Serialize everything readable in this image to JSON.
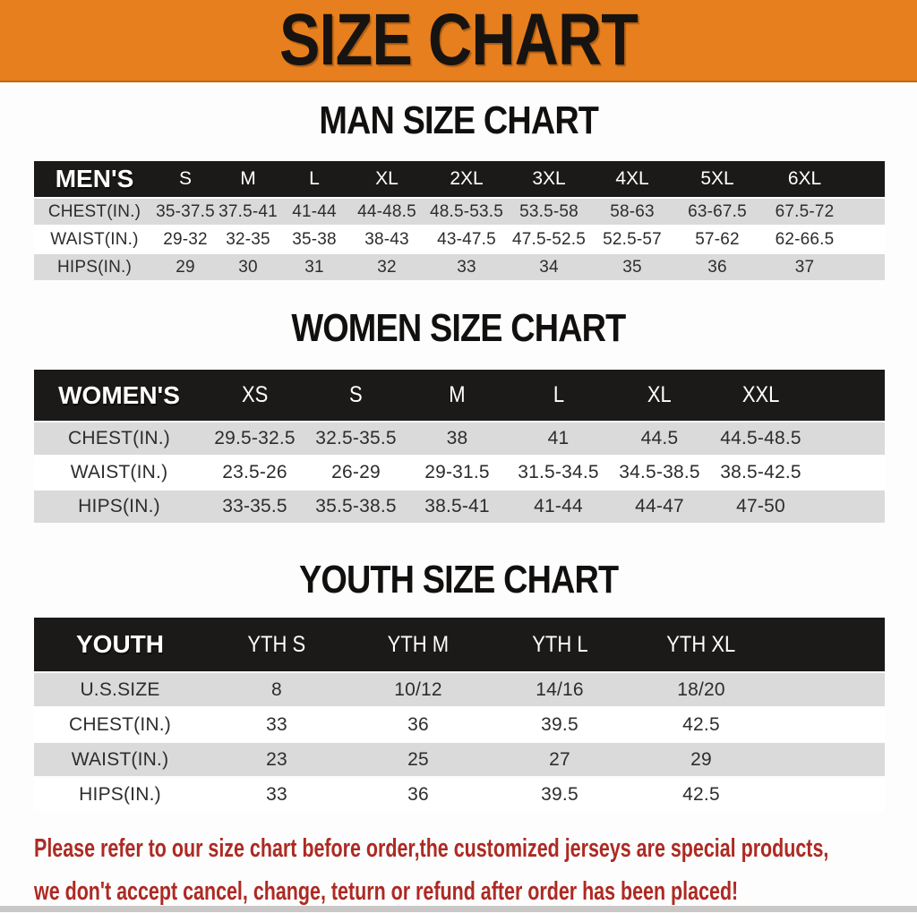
{
  "banner": {
    "title": "SIZE CHART"
  },
  "colors": {
    "banner_orange": "#E77F1E",
    "header_black": "#1b1a18",
    "row_gray": "#dadada",
    "note_red": "#ad2a23",
    "bottom_strip_gray": "#cac8c6"
  },
  "sections": [
    {
      "heading": "MAN SIZE CHART",
      "table": {
        "label": "MEN'S",
        "sizes": [
          "S",
          "M",
          "L",
          "XL",
          "2XL",
          "3XL",
          "4XL",
          "5XL",
          "6XL"
        ],
        "rows": [
          {
            "label": "CHEST(IN.)",
            "values": [
              "35-37.5",
              "37.5-41",
              "41-44",
              "44-48.5",
              "48.5-53.5",
              "53.5-58",
              "58-63",
              "63-67.5",
              "67.5-72"
            ]
          },
          {
            "label": "WAIST(IN.)",
            "values": [
              "29-32",
              "32-35",
              "35-38",
              "38-43",
              "43-47.5",
              "47.5-52.5",
              "52.5-57",
              "57-62",
              "62-66.5"
            ]
          },
          {
            "label": "HIPS(IN.)",
            "values": [
              "29",
              "30",
              "31",
              "32",
              "33",
              "34",
              "35",
              "36",
              "37"
            ]
          }
        ]
      }
    },
    {
      "heading": "WOMEN SIZE CHART",
      "table": {
        "label": "WOMEN'S",
        "sizes": [
          "XS",
          "S",
          "M",
          "L",
          "XL",
          "XXL"
        ],
        "rows": [
          {
            "label": "CHEST(IN.)",
            "values": [
              "29.5-32.5",
              "32.5-35.5",
              "38",
              "41",
              "44.5",
              "44.5-48.5"
            ]
          },
          {
            "label": "WAIST(IN.)",
            "values": [
              "23.5-26",
              "26-29",
              "29-31.5",
              "31.5-34.5",
              "34.5-38.5",
              "38.5-42.5"
            ]
          },
          {
            "label": "HIPS(IN.)",
            "values": [
              "33-35.5",
              "35.5-38.5",
              "38.5-41",
              "41-44",
              "44-47",
              "47-50"
            ]
          }
        ]
      }
    },
    {
      "heading": "YOUTH SIZE CHART",
      "table": {
        "label": "YOUTH",
        "sizes": [
          "YTH S",
          "YTH M",
          "YTH L",
          "YTH XL"
        ],
        "rows": [
          {
            "label": "U.S.SIZE",
            "values": [
              "8",
              "10/12",
              "14/16",
              "18/20"
            ]
          },
          {
            "label": "CHEST(IN.)",
            "values": [
              "33",
              "36",
              "39.5",
              "42.5"
            ]
          },
          {
            "label": "WAIST(IN.)",
            "values": [
              "23",
              "25",
              "27",
              "29"
            ]
          },
          {
            "label": "HIPS(IN.)",
            "values": [
              "33",
              "36",
              "39.5",
              "42.5"
            ]
          }
        ]
      }
    }
  ],
  "note": {
    "line1": "Please refer to our size chart before order,the customized jerseys are special products,",
    "line2": "we don't accept cancel, change, teturn or refund after order has been placed!"
  }
}
